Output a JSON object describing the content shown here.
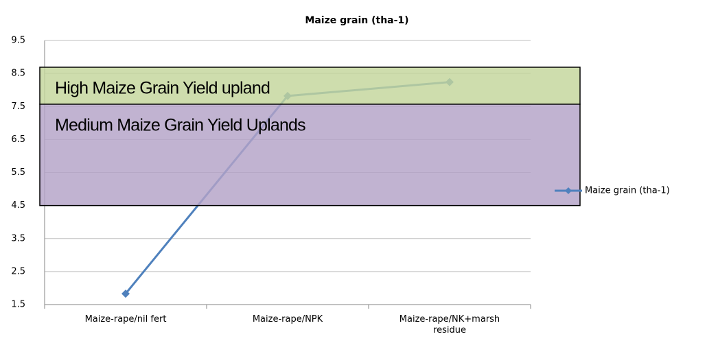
{
  "chart_data": {
    "type": "line",
    "title": "Maize grain (tha-1)",
    "categories": [
      "Maize-rape/nil fert",
      "Maize-rape/NPK",
      "Maize-rape/NK+marsh residue"
    ],
    "series": [
      {
        "name": "Maize grain (tha-1)",
        "color": "#4f81bd",
        "values": [
          1.83,
          7.82,
          8.24
        ]
      }
    ],
    "ylim": [
      1.5,
      9.5
    ],
    "yticks": [
      1.5,
      2.5,
      3.5,
      4.5,
      5.5,
      6.5,
      7.5,
      8.5,
      9.5
    ],
    "grid": true,
    "legend": "right",
    "bands": [
      {
        "label": "High Maize Grain Yield upland",
        "from": 7.57,
        "to": 8.69,
        "color": "#c3d69b"
      },
      {
        "label": "Medium Maize Grain Yield Uplands",
        "from": 4.5,
        "to": 7.57,
        "color": "#b3a2c7"
      }
    ]
  }
}
